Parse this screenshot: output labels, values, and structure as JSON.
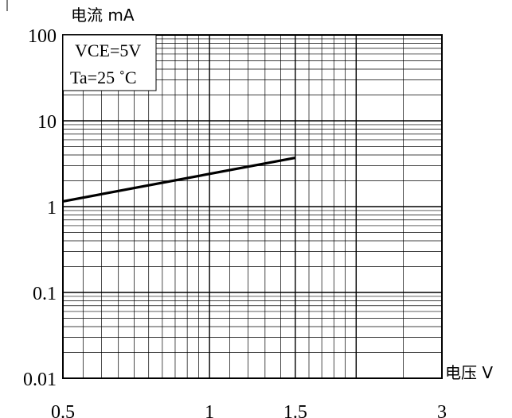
{
  "chart_data": {
    "type": "line",
    "title": "",
    "ylabel": "电流 mA",
    "xlabel": "电压 V",
    "x_scale": "log",
    "y_scale": "log",
    "xlim": [
      0.5,
      3
    ],
    "ylim": [
      0.01,
      100
    ],
    "x_ticks": [
      "0.5",
      "1",
      "1.5",
      "3"
    ],
    "x_tick_values": [
      0.5,
      1,
      1.5,
      3
    ],
    "y_ticks": [
      "0.01",
      "0.1",
      "1",
      "10",
      "100"
    ],
    "y_tick_values": [
      0.01,
      0.1,
      1,
      10,
      100
    ],
    "grid": true,
    "annotations": [
      "VCE=5V",
      "Ta=25 ˚C"
    ],
    "series": [
      {
        "x": [
          0.5,
          1.5
        ],
        "y": [
          1.15,
          3.7
        ]
      }
    ]
  },
  "colors": {
    "background": "#ffffff",
    "line": "#000000",
    "grid": "#000000"
  }
}
